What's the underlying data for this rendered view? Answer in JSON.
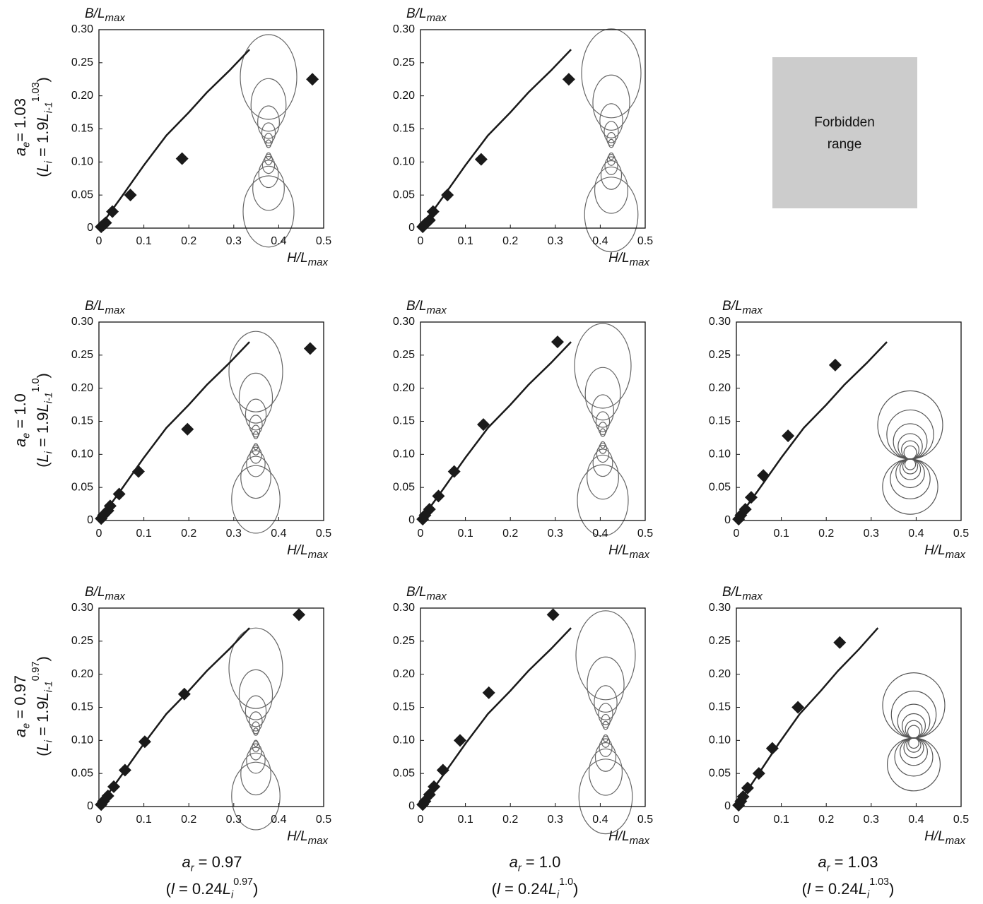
{
  "chart_data": [
    {
      "type": "scatter",
      "xlabel": "H/L",
      "xlabel_sub": "max",
      "ylabel": "B/L",
      "ylabel_sub": "max",
      "xlim": [
        0,
        0.5
      ],
      "ylim": [
        0,
        0.3
      ],
      "xticks": [
        0,
        0.1,
        0.2,
        0.3,
        0.4,
        0.5
      ],
      "yticks": [
        0,
        0.05,
        {
          "value": 0.1,
          "label": "0.10"
        },
        0.15,
        {
          "value": 0.2,
          "label": "0.20"
        },
        0.25,
        {
          "value": 0.3,
          "label": "0.30"
        }
      ],
      "line": {
        "color": "#1a1a1a",
        "x": [
          0,
          0.05,
          0.1,
          0.15,
          0.2,
          0.24,
          0.29,
          0.335
        ],
        "y": [
          0,
          0.047,
          0.095,
          0.14,
          0.175,
          0.205,
          0.238,
          0.27
        ]
      },
      "points": {
        "color": "#1a1a1a",
        "x": [
          0.005,
          0.01,
          0.015,
          0.03,
          0.07,
          0.185,
          0.475
        ],
        "y": [
          0.002,
          0.005,
          0.008,
          0.025,
          0.05,
          0.105,
          0.225
        ]
      }
    },
    {
      "type": "scatter",
      "xlabel": "H/L",
      "xlabel_sub": "max",
      "ylabel": "B/L",
      "ylabel_sub": "max",
      "xlim": [
        0,
        0.5
      ],
      "ylim": [
        0,
        0.3
      ],
      "xticks": [
        0,
        0.1,
        0.2,
        0.3,
        0.4,
        0.5
      ],
      "yticks": [
        0,
        0.05,
        {
          "value": 0.1,
          "label": "0.10"
        },
        0.15,
        {
          "value": 0.2,
          "label": "0.20"
        },
        0.25,
        {
          "value": 0.3,
          "label": "0.30"
        }
      ],
      "line": {
        "color": "#1a1a1a",
        "x": [
          0,
          0.05,
          0.1,
          0.15,
          0.2,
          0.24,
          0.29,
          0.335
        ],
        "y": [
          0,
          0.047,
          0.095,
          0.14,
          0.175,
          0.205,
          0.238,
          0.27
        ]
      },
      "points": {
        "color": "#1a1a1a",
        "x": [
          0.005,
          0.01,
          0.02,
          0.028,
          0.06,
          0.135,
          0.33
        ],
        "y": [
          0.002,
          0.006,
          0.012,
          0.025,
          0.05,
          0.104,
          0.225
        ]
      }
    },
    {
      "type": "scatter",
      "xlabel": "H/L",
      "xlabel_sub": "max",
      "ylabel": "B/L",
      "ylabel_sub": "max",
      "xlim": [
        0,
        0.5
      ],
      "ylim": [
        0,
        0.3
      ],
      "xticks": [
        0,
        0.1,
        0.2,
        0.3,
        0.4,
        0.5
      ],
      "yticks": [
        0,
        0.05,
        {
          "value": 0.1,
          "label": "0.10"
        },
        0.15,
        {
          "value": 0.2,
          "label": "0.20"
        },
        0.25,
        {
          "value": 0.3,
          "label": "0.30"
        }
      ],
      "line": {
        "color": "#1a1a1a",
        "x": [
          0,
          0.05,
          0.1,
          0.15,
          0.2,
          0.24,
          0.29,
          0.335
        ],
        "y": [
          0,
          0.047,
          0.095,
          0.14,
          0.175,
          0.205,
          0.238,
          0.27
        ]
      },
      "points": {
        "color": "#1a1a1a",
        "x": [
          0.005,
          0.01,
          0.02,
          0.025,
          0.045,
          0.088,
          0.197,
          0.47
        ],
        "y": [
          0.003,
          0.008,
          0.015,
          0.022,
          0.04,
          0.074,
          0.138,
          0.26
        ]
      }
    },
    {
      "type": "scatter",
      "xlabel": "H/L",
      "xlabel_sub": "max",
      "ylabel": "B/L",
      "ylabel_sub": "max",
      "xlim": [
        0,
        0.5
      ],
      "ylim": [
        0,
        0.3
      ],
      "xticks": [
        0,
        0.1,
        0.2,
        0.3,
        0.4,
        0.5
      ],
      "yticks": [
        0,
        0.05,
        {
          "value": 0.1,
          "label": "0.10"
        },
        0.15,
        {
          "value": 0.2,
          "label": "0.20"
        },
        0.25,
        {
          "value": 0.3,
          "label": "0.30"
        }
      ],
      "line": {
        "color": "#1a1a1a",
        "x": [
          0,
          0.05,
          0.1,
          0.15,
          0.2,
          0.24,
          0.29,
          0.335
        ],
        "y": [
          0,
          0.047,
          0.095,
          0.14,
          0.175,
          0.205,
          0.238,
          0.27
        ]
      },
      "points": {
        "color": "#1a1a1a",
        "x": [
          0.005,
          0.01,
          0.02,
          0.04,
          0.075,
          0.14,
          0.305
        ],
        "y": [
          0.002,
          0.008,
          0.017,
          0.037,
          0.074,
          0.145,
          0.27
        ]
      }
    },
    {
      "type": "scatter",
      "xlabel": "H/L",
      "xlabel_sub": "max",
      "ylabel": "B/L",
      "ylabel_sub": "max",
      "xlim": [
        0,
        0.5
      ],
      "ylim": [
        0,
        0.3
      ],
      "xticks": [
        0,
        0.1,
        0.2,
        0.3,
        0.4,
        0.5
      ],
      "yticks": [
        0,
        0.05,
        {
          "value": 0.1,
          "label": "0.10"
        },
        0.15,
        {
          "value": 0.2,
          "label": "0.20"
        },
        0.25,
        {
          "value": 0.3,
          "label": "0.30"
        }
      ],
      "line": {
        "color": "#1a1a1a",
        "x": [
          0,
          0.05,
          0.1,
          0.15,
          0.2,
          0.24,
          0.29,
          0.335
        ],
        "y": [
          0,
          0.047,
          0.095,
          0.14,
          0.175,
          0.205,
          0.238,
          0.27
        ]
      },
      "points": {
        "color": "#1a1a1a",
        "x": [
          0.005,
          0.01,
          0.02,
          0.033,
          0.06,
          0.115,
          0.22
        ],
        "y": [
          0.002,
          0.008,
          0.017,
          0.035,
          0.068,
          0.128,
          0.235
        ]
      }
    },
    {
      "type": "scatter",
      "xlabel": "H/L",
      "xlabel_sub": "max",
      "ylabel": "B/L",
      "ylabel_sub": "max",
      "xlim": [
        0,
        0.5
      ],
      "ylim": [
        0,
        0.3
      ],
      "xticks": [
        0,
        0.1,
        0.2,
        0.3,
        0.4,
        0.5
      ],
      "yticks": [
        0,
        0.05,
        {
          "value": 0.1,
          "label": "0.10"
        },
        0.15,
        {
          "value": 0.2,
          "label": "0.20"
        },
        0.25,
        {
          "value": 0.3,
          "label": "0.30"
        }
      ],
      "line": {
        "color": "#1a1a1a",
        "x": [
          0,
          0.05,
          0.1,
          0.15,
          0.2,
          0.24,
          0.29,
          0.335
        ],
        "y": [
          0,
          0.047,
          0.095,
          0.14,
          0.175,
          0.205,
          0.238,
          0.27
        ]
      },
      "points": {
        "color": "#1a1a1a",
        "x": [
          0.005,
          0.01,
          0.02,
          0.033,
          0.058,
          0.102,
          0.19,
          0.445
        ],
        "y": [
          0.003,
          0.008,
          0.016,
          0.03,
          0.055,
          0.098,
          0.17,
          0.29
        ]
      }
    },
    {
      "type": "scatter",
      "xlabel": "H/L",
      "xlabel_sub": "max",
      "ylabel": "B/L",
      "ylabel_sub": "max",
      "xlim": [
        0,
        0.5
      ],
      "ylim": [
        0,
        0.3
      ],
      "xticks": [
        0,
        0.1,
        0.2,
        0.3,
        0.4,
        0.5
      ],
      "yticks": [
        0,
        0.05,
        {
          "value": 0.1,
          "label": "0.10"
        },
        0.15,
        {
          "value": 0.2,
          "label": "0.20"
        },
        0.25,
        {
          "value": 0.3,
          "label": "0.30"
        }
      ],
      "line": {
        "color": "#1a1a1a",
        "x": [
          0,
          0.05,
          0.1,
          0.15,
          0.2,
          0.24,
          0.29,
          0.335
        ],
        "y": [
          0,
          0.047,
          0.095,
          0.14,
          0.175,
          0.205,
          0.238,
          0.27
        ]
      },
      "points": {
        "color": "#1a1a1a",
        "x": [
          0.005,
          0.01,
          0.02,
          0.03,
          0.05,
          0.088,
          0.152,
          0.295
        ],
        "y": [
          0.003,
          0.008,
          0.018,
          0.03,
          0.055,
          0.1,
          0.172,
          0.29
        ]
      }
    },
    {
      "type": "scatter",
      "xlabel": "H/L",
      "xlabel_sub": "max",
      "ylabel": "B/L",
      "ylabel_sub": "max",
      "xlim": [
        0,
        0.5
      ],
      "ylim": [
        0,
        0.3
      ],
      "xticks": [
        0,
        0.1,
        0.2,
        0.3,
        0.4,
        0.5
      ],
      "yticks": [
        0,
        0.05,
        {
          "value": 0.1,
          "label": "0.10"
        },
        0.15,
        {
          "value": 0.2,
          "label": "0.20"
        },
        0.25,
        {
          "value": 0.3,
          "label": "0.30"
        }
      ],
      "line": {
        "color": "#1a1a1a",
        "x": [
          0,
          0.047,
          0.094,
          0.141,
          0.188,
          0.226,
          0.273,
          0.315
        ],
        "y": [
          0,
          0.047,
          0.095,
          0.14,
          0.175,
          0.205,
          0.238,
          0.27
        ]
      },
      "points": {
        "color": "#1a1a1a",
        "x": [
          0.005,
          0.01,
          0.015,
          0.025,
          0.05,
          0.08,
          0.137,
          0.23
        ],
        "y": [
          0.002,
          0.008,
          0.015,
          0.028,
          0.05,
          0.088,
          0.15,
          0.248
        ]
      }
    }
  ],
  "forbidden": {
    "lines": [
      "Forbidden",
      "range"
    ]
  },
  "row_labels": [
    [
      [
        {
          "text": "a",
          "style": "italic"
        },
        {
          "text": "e",
          "style": "sub"
        },
        {
          "text": "= 1.03",
          "style": "plain"
        }
      ],
      [
        {
          "text": "(",
          "style": "plain"
        },
        {
          "text": "L",
          "style": "italic"
        },
        {
          "text": "i",
          "style": "sub"
        },
        {
          "text": " = 1.9",
          "style": "plain"
        },
        {
          "text": "L",
          "style": "italic"
        },
        {
          "text": "i-1",
          "style": "sub"
        },
        {
          "text": "1.03",
          "style": "sup"
        },
        {
          "text": ")",
          "style": "plain"
        }
      ]
    ],
    [
      [
        {
          "text": "a",
          "style": "italic"
        },
        {
          "text": "e",
          "style": "sub"
        },
        {
          "text": " = 1.0",
          "style": "plain"
        }
      ],
      [
        {
          "text": "(",
          "style": "plain"
        },
        {
          "text": "L",
          "style": "italic"
        },
        {
          "text": "i",
          "style": "sub"
        },
        {
          "text": " = 1.9",
          "style": "plain"
        },
        {
          "text": "L",
          "style": "italic"
        },
        {
          "text": "i-1",
          "style": "sub"
        },
        {
          "text": "1.0",
          "style": "sup"
        },
        {
          "text": ")",
          "style": "plain"
        }
      ]
    ],
    [
      [
        {
          "text": "a",
          "style": "italic"
        },
        {
          "text": "e",
          "style": "sub"
        },
        {
          "text": " = 0.97",
          "style": "plain"
        }
      ],
      [
        {
          "text": "(",
          "style": "plain"
        },
        {
          "text": "L",
          "style": "italic"
        },
        {
          "text": "i",
          "style": "sub"
        },
        {
          "text": " = 1.9",
          "style": "plain"
        },
        {
          "text": "L",
          "style": "italic"
        },
        {
          "text": "i-1",
          "style": "sub"
        },
        {
          "text": "0.97",
          "style": "sup"
        },
        {
          "text": ")",
          "style": "plain"
        }
      ]
    ]
  ],
  "col_labels": [
    [
      [
        {
          "text": "a",
          "style": "italic"
        },
        {
          "text": "r",
          "style": "sub"
        },
        {
          "text": " = 0.97",
          "style": "plain"
        }
      ],
      [
        {
          "text": "(",
          "style": "plain"
        },
        {
          "text": "l",
          "style": "italic"
        },
        {
          "text": " = 0.24",
          "style": "plain"
        },
        {
          "text": "L",
          "style": "italic"
        },
        {
          "text": "i",
          "style": "sub"
        },
        {
          "text": "0.97",
          "style": "sup"
        },
        {
          "text": ")",
          "style": "plain"
        }
      ]
    ],
    [
      [
        {
          "text": "a",
          "style": "italic"
        },
        {
          "text": "r",
          "style": "sub"
        },
        {
          "text": " = 1.0",
          "style": "plain"
        }
      ],
      [
        {
          "text": "(",
          "style": "plain"
        },
        {
          "text": "l",
          "style": "italic"
        },
        {
          "text": " = 0.24",
          "style": "plain"
        },
        {
          "text": "L",
          "style": "italic"
        },
        {
          "text": "i",
          "style": "sub"
        },
        {
          "text": "1.0",
          "style": "sup"
        },
        {
          "text": ")",
          "style": "plain"
        }
      ]
    ],
    [
      [
        {
          "text": "a",
          "style": "italic"
        },
        {
          "text": "r",
          "style": "sub"
        },
        {
          "text": " = 1.03",
          "style": "plain"
        }
      ],
      [
        {
          "text": "(",
          "style": "plain"
        },
        {
          "text": "l",
          "style": "italic"
        },
        {
          "text": " = 0.24",
          "style": "plain"
        },
        {
          "text": "L",
          "style": "italic"
        },
        {
          "text": "i",
          "style": "sub"
        },
        {
          "text": "1.03",
          "style": "sup"
        },
        {
          "text": ")",
          "style": "plain"
        }
      ]
    ]
  ]
}
